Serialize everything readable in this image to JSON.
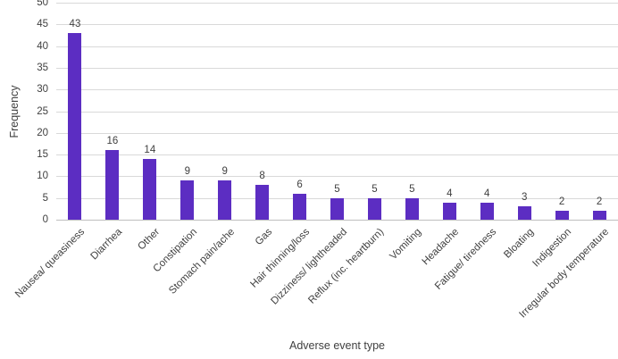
{
  "chart_data": {
    "type": "bar",
    "title": "",
    "xlabel": "Adverse event type",
    "ylabel": "Frequency",
    "categories": [
      "Nausea/ queasiness",
      "Diarrhea",
      "Other",
      "Constipation",
      "Stomach pain/ache",
      "Gas",
      "Hair thinning/loss",
      "Dizziness/ lightheaded",
      "Reflux (inc. heartburn)",
      "Vomiting",
      "Headache",
      "Fatigue/ tiredness",
      "Bloating",
      "Indigestion",
      "Irregular body temperature"
    ],
    "values": [
      43,
      16,
      14,
      9,
      9,
      8,
      6,
      5,
      5,
      5,
      4,
      4,
      3,
      2,
      2
    ],
    "ylim": [
      0,
      50
    ],
    "ytick_step": 5,
    "yticks": [
      0,
      5,
      10,
      15,
      20,
      25,
      30,
      35,
      40,
      45,
      50
    ],
    "grid": "horizontal",
    "legend": "none",
    "data_labels": true,
    "x_label_rotation_deg": 45,
    "colors": {
      "bar": "#5C2DC2",
      "text": "#404040",
      "gridline": "#D9D9D9",
      "axis_line": "#BFBFBF",
      "background": "#FFFFFF"
    }
  }
}
